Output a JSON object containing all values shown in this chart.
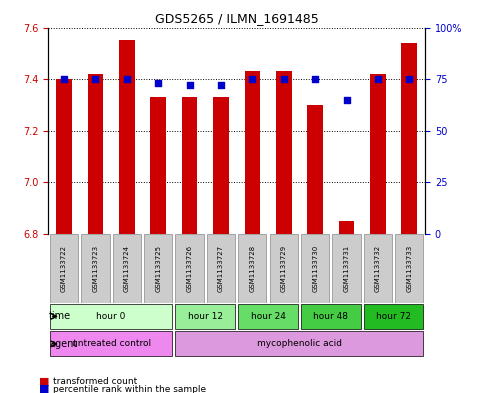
{
  "title": "GDS5265 / ILMN_1691485",
  "samples": [
    "GSM1133722",
    "GSM1133723",
    "GSM1133724",
    "GSM1133725",
    "GSM1133726",
    "GSM1133727",
    "GSM1133728",
    "GSM1133729",
    "GSM1133730",
    "GSM1133731",
    "GSM1133732",
    "GSM1133733"
  ],
  "bar_values": [
    7.4,
    7.42,
    7.55,
    7.33,
    7.33,
    7.33,
    7.43,
    7.43,
    7.3,
    6.85,
    7.42,
    7.54
  ],
  "bar_base": 6.8,
  "percentile_values": [
    75,
    75,
    75,
    73,
    72,
    72,
    75,
    75,
    75,
    65,
    75,
    75
  ],
  "ylim_left": [
    6.8,
    7.6
  ],
  "ylim_right": [
    0,
    100
  ],
  "yticks_left": [
    6.8,
    7.0,
    7.2,
    7.4,
    7.6
  ],
  "yticks_right": [
    0,
    25,
    50,
    75,
    100
  ],
  "ytick_labels_right": [
    "0",
    "25",
    "50",
    "75",
    "100%"
  ],
  "bar_color": "#cc0000",
  "dot_color": "#0000cc",
  "grid_color": "#000000",
  "time_groups": [
    {
      "label": "hour 0",
      "start": 0,
      "end": 3,
      "color": "#ccffcc"
    },
    {
      "label": "hour 12",
      "start": 4,
      "end": 5,
      "color": "#99ee99"
    },
    {
      "label": "hour 24",
      "start": 6,
      "end": 7,
      "color": "#66dd66"
    },
    {
      "label": "hour 48",
      "start": 8,
      "end": 9,
      "color": "#44cc44"
    },
    {
      "label": "hour 72",
      "start": 10,
      "end": 11,
      "color": "#22bb22"
    }
  ],
  "agent_groups": [
    {
      "label": "untreated control",
      "start": 0,
      "end": 3,
      "color": "#ee88ee"
    },
    {
      "label": "mycophenolic acid",
      "start": 4,
      "end": 11,
      "color": "#dd99dd"
    }
  ],
  "bar_width": 0.5,
  "xlabel_color": "#cc0000",
  "ylabel_left_color": "#cc0000",
  "ylabel_right_color": "#0000cc",
  "sample_bg_color": "#cccccc",
  "sample_bg_border": "#888888"
}
